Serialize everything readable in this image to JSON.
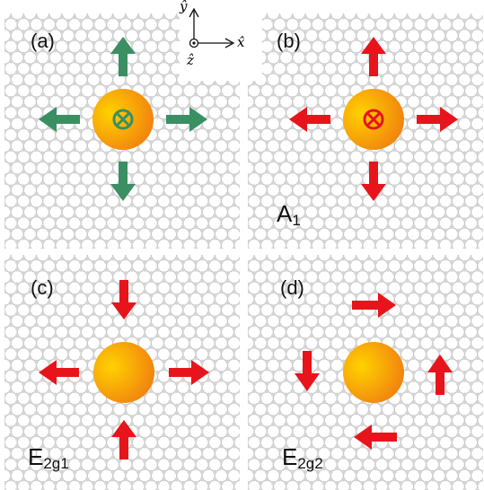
{
  "axes": {
    "x_label": "x̂",
    "y_label": "ŷ",
    "z_label": "ẑ"
  },
  "panels": [
    {
      "id": "a",
      "label": "(a)",
      "mode_base": "",
      "mode_sub": "",
      "arrow_color": "#3a8f63",
      "has_cross": true
    },
    {
      "id": "b",
      "label": "(b)",
      "mode_base": "A",
      "mode_sub": "1",
      "arrow_color": "#e8141c",
      "has_cross": true
    },
    {
      "id": "c",
      "label": "(c)",
      "mode_base": "E",
      "mode_sub": "2g1",
      "arrow_color": "#e8141c",
      "has_cross": false
    },
    {
      "id": "d",
      "label": "(d)",
      "mode_base": "E",
      "mode_sub": "2g2",
      "arrow_color": "#e8141c",
      "has_cross": false
    }
  ],
  "colors": {
    "atom_gradient_start": "#ffd200",
    "atom_gradient_end": "#f07a10",
    "lattice": "#c8c8c8"
  }
}
